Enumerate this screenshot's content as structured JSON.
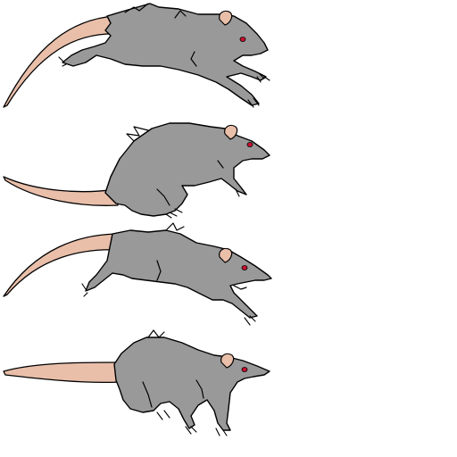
{
  "sprite_sheet": {
    "background": "#ffffff",
    "colors": {
      "fur": "#999999",
      "tail": "#e9bfaa",
      "ear": "#e9bfaa",
      "eye": "#c8102e",
      "outline": "#000000"
    },
    "frames": [
      {
        "name": "rat-run-frame-1",
        "pose": "leaping-extended"
      },
      {
        "name": "rat-run-frame-2",
        "pose": "crouched-gather"
      },
      {
        "name": "rat-run-frame-3",
        "pose": "leaping-stretch"
      },
      {
        "name": "rat-run-frame-4",
        "pose": "standing-stride"
      }
    ]
  }
}
